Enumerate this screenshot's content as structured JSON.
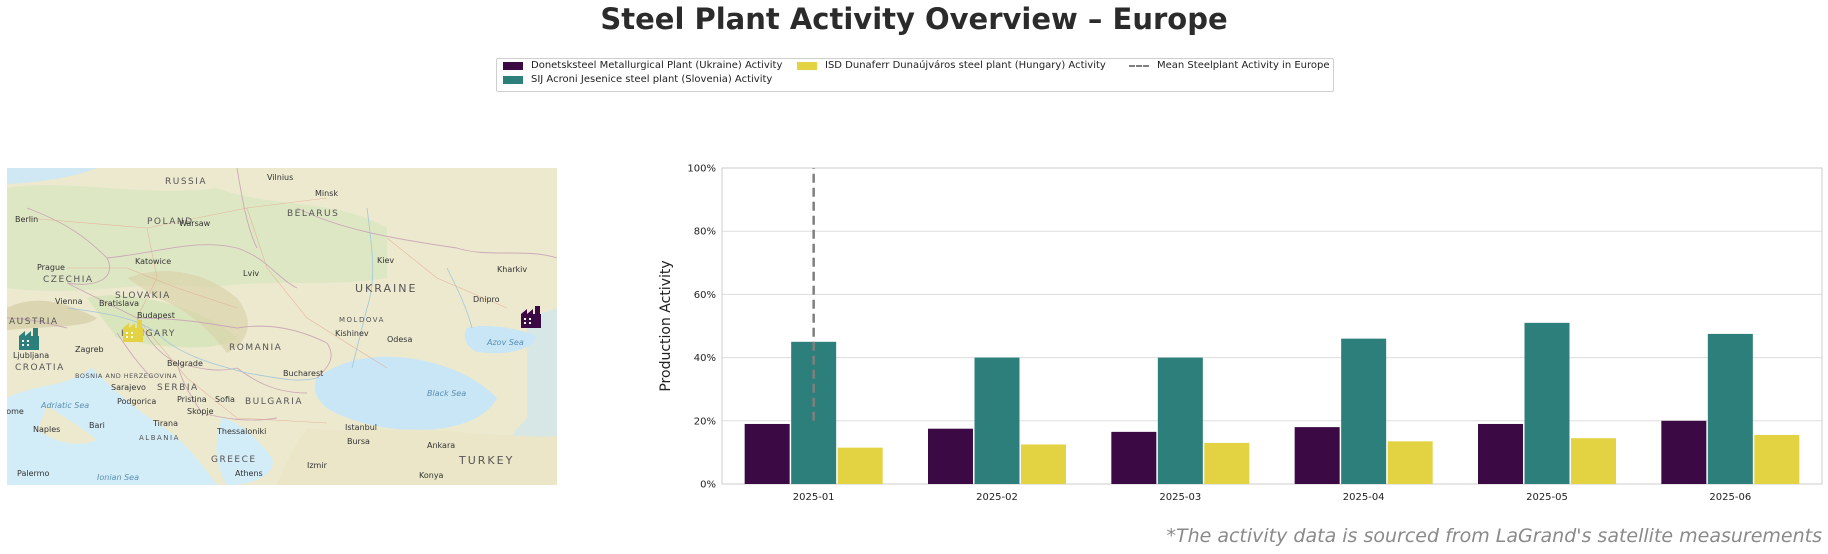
{
  "title": "Steel Plant Activity Overview – Europe",
  "footnote": "*The activity data is sourced from LaGrand's satellite measurements",
  "legend": [
    {
      "label": "Donetsksteel Metallurgical Plant (Ukraine) Activity",
      "color": "#3b0a45",
      "kind": "bar"
    },
    {
      "label": "SIJ Acroni Jesenice steel plant (Slovenia) Activity",
      "color": "#2d7f7b",
      "kind": "bar"
    },
    {
      "label": "ISD Dunaferr Dunaújváros steel plant (Hungary) Activity",
      "color": "#e3d241",
      "kind": "bar"
    },
    {
      "label": "Mean Steelplant Activity in Europe",
      "color": "#7f7f7f",
      "kind": "dashed-line"
    }
  ],
  "map": {
    "places": [
      {
        "name": "Vilnius",
        "type": "city"
      },
      {
        "name": "RUSSIA",
        "type": "country"
      },
      {
        "name": "Minsk",
        "type": "city"
      },
      {
        "name": "Berlin",
        "type": "city"
      },
      {
        "name": "POLAND",
        "type": "country"
      },
      {
        "name": "Warsaw",
        "type": "city"
      },
      {
        "name": "BELARUS",
        "type": "country"
      },
      {
        "name": "Katowice",
        "type": "city"
      },
      {
        "name": "Kiev",
        "type": "city"
      },
      {
        "name": "Prague",
        "type": "city"
      },
      {
        "name": "CZECHIA",
        "type": "country"
      },
      {
        "name": "Lviv",
        "type": "city"
      },
      {
        "name": "Kharkiv",
        "type": "city"
      },
      {
        "name": "UKRAINE",
        "type": "country"
      },
      {
        "name": "SLOVAKIA",
        "type": "country"
      },
      {
        "name": "Vienna",
        "type": "city"
      },
      {
        "name": "Bratislava",
        "type": "city"
      },
      {
        "name": "Dnipro",
        "type": "city"
      },
      {
        "name": "AUSTRIA",
        "type": "country"
      },
      {
        "name": "Budapest",
        "type": "city"
      },
      {
        "name": "MOLDOVA",
        "type": "country"
      },
      {
        "name": "Kishinev",
        "type": "city"
      },
      {
        "name": "Odesa",
        "type": "city"
      },
      {
        "name": "Azov Sea",
        "type": "sea"
      },
      {
        "name": "HUNGARY",
        "type": "country"
      },
      {
        "name": "ROMANIA",
        "type": "country"
      },
      {
        "name": "Ljubljana",
        "type": "city"
      },
      {
        "name": "Zagreb",
        "type": "city"
      },
      {
        "name": "CROATIA",
        "type": "country"
      },
      {
        "name": "BOSNIA AND HERZEGOVINA",
        "type": "country"
      },
      {
        "name": "Belgrade",
        "type": "city"
      },
      {
        "name": "SERBIA",
        "type": "country"
      },
      {
        "name": "Bucharest",
        "type": "city"
      },
      {
        "name": "Sarajevo",
        "type": "city"
      },
      {
        "name": "Podgorica",
        "type": "city"
      },
      {
        "name": "Pristina",
        "type": "city"
      },
      {
        "name": "Sofia",
        "type": "city"
      },
      {
        "name": "BULGARIA",
        "type": "country"
      },
      {
        "name": "Black Sea",
        "type": "sea"
      },
      {
        "name": "Adriatic Sea",
        "type": "sea"
      },
      {
        "name": "Skopje",
        "type": "city"
      },
      {
        "name": "Rome",
        "type": "city"
      },
      {
        "name": "Bari",
        "type": "city"
      },
      {
        "name": "Tirana",
        "type": "city"
      },
      {
        "name": "ALBANIA",
        "type": "country"
      },
      {
        "name": "Naples",
        "type": "city"
      },
      {
        "name": "Thessaloniki",
        "type": "city"
      },
      {
        "name": "Istanbul",
        "type": "city"
      },
      {
        "name": "Bursa",
        "type": "city"
      },
      {
        "name": "Ankara",
        "type": "city"
      },
      {
        "name": "GREECE",
        "type": "country"
      },
      {
        "name": "TURKEY",
        "type": "country"
      },
      {
        "name": "Izmir",
        "type": "city"
      },
      {
        "name": "Palermo",
        "type": "city"
      },
      {
        "name": "Ionian Sea",
        "type": "sea"
      },
      {
        "name": "Athens",
        "type": "city"
      },
      {
        "name": "Konya",
        "type": "city"
      }
    ],
    "markers": [
      {
        "plant": "Donetsksteel Metallurgical Plant (Ukraine)",
        "color": "#3b0a45",
        "icon": "factory-icon"
      },
      {
        "plant": "SIJ Acroni Jesenice steel plant (Slovenia)",
        "color": "#2d7f7b",
        "icon": "factory-icon"
      },
      {
        "plant": "ISD Dunaferr Dunaújváros steel plant (Hungary)",
        "color": "#e3d241",
        "icon": "factory-icon"
      }
    ]
  },
  "chart_data": {
    "type": "bar",
    "categories": [
      "2025-01",
      "2025-02",
      "2025-03",
      "2025-04",
      "2025-05",
      "2025-06"
    ],
    "series": [
      {
        "name": "Donetsksteel Metallurgical Plant (Ukraine) Activity",
        "color": "#3b0a45",
        "values": [
          19,
          17.5,
          16.5,
          18,
          19,
          20
        ]
      },
      {
        "name": "SIJ Acroni Jesenice steel plant (Slovenia) Activity",
        "color": "#2d7f7b",
        "values": [
          45,
          40,
          40,
          46,
          51,
          47.5
        ]
      },
      {
        "name": "ISD Dunaferr Dunaújváros steel plant (Hungary) Activity",
        "color": "#e3d241",
        "values": [
          11.5,
          12.5,
          13,
          13.5,
          14.5,
          15.5
        ]
      }
    ],
    "mean_line": {
      "name": "Mean Steelplant Activity in Europe",
      "color": "#7f7f7f",
      "x": "2025-01",
      "y_range": [
        20,
        100
      ],
      "style": "dashed"
    },
    "ylabel": "Production Activity",
    "xlabel": "",
    "ylim": [
      0,
      100
    ],
    "yticks": [
      "0%",
      "20%",
      "40%",
      "60%",
      "80%",
      "100%"
    ],
    "grid": "horizontal"
  }
}
